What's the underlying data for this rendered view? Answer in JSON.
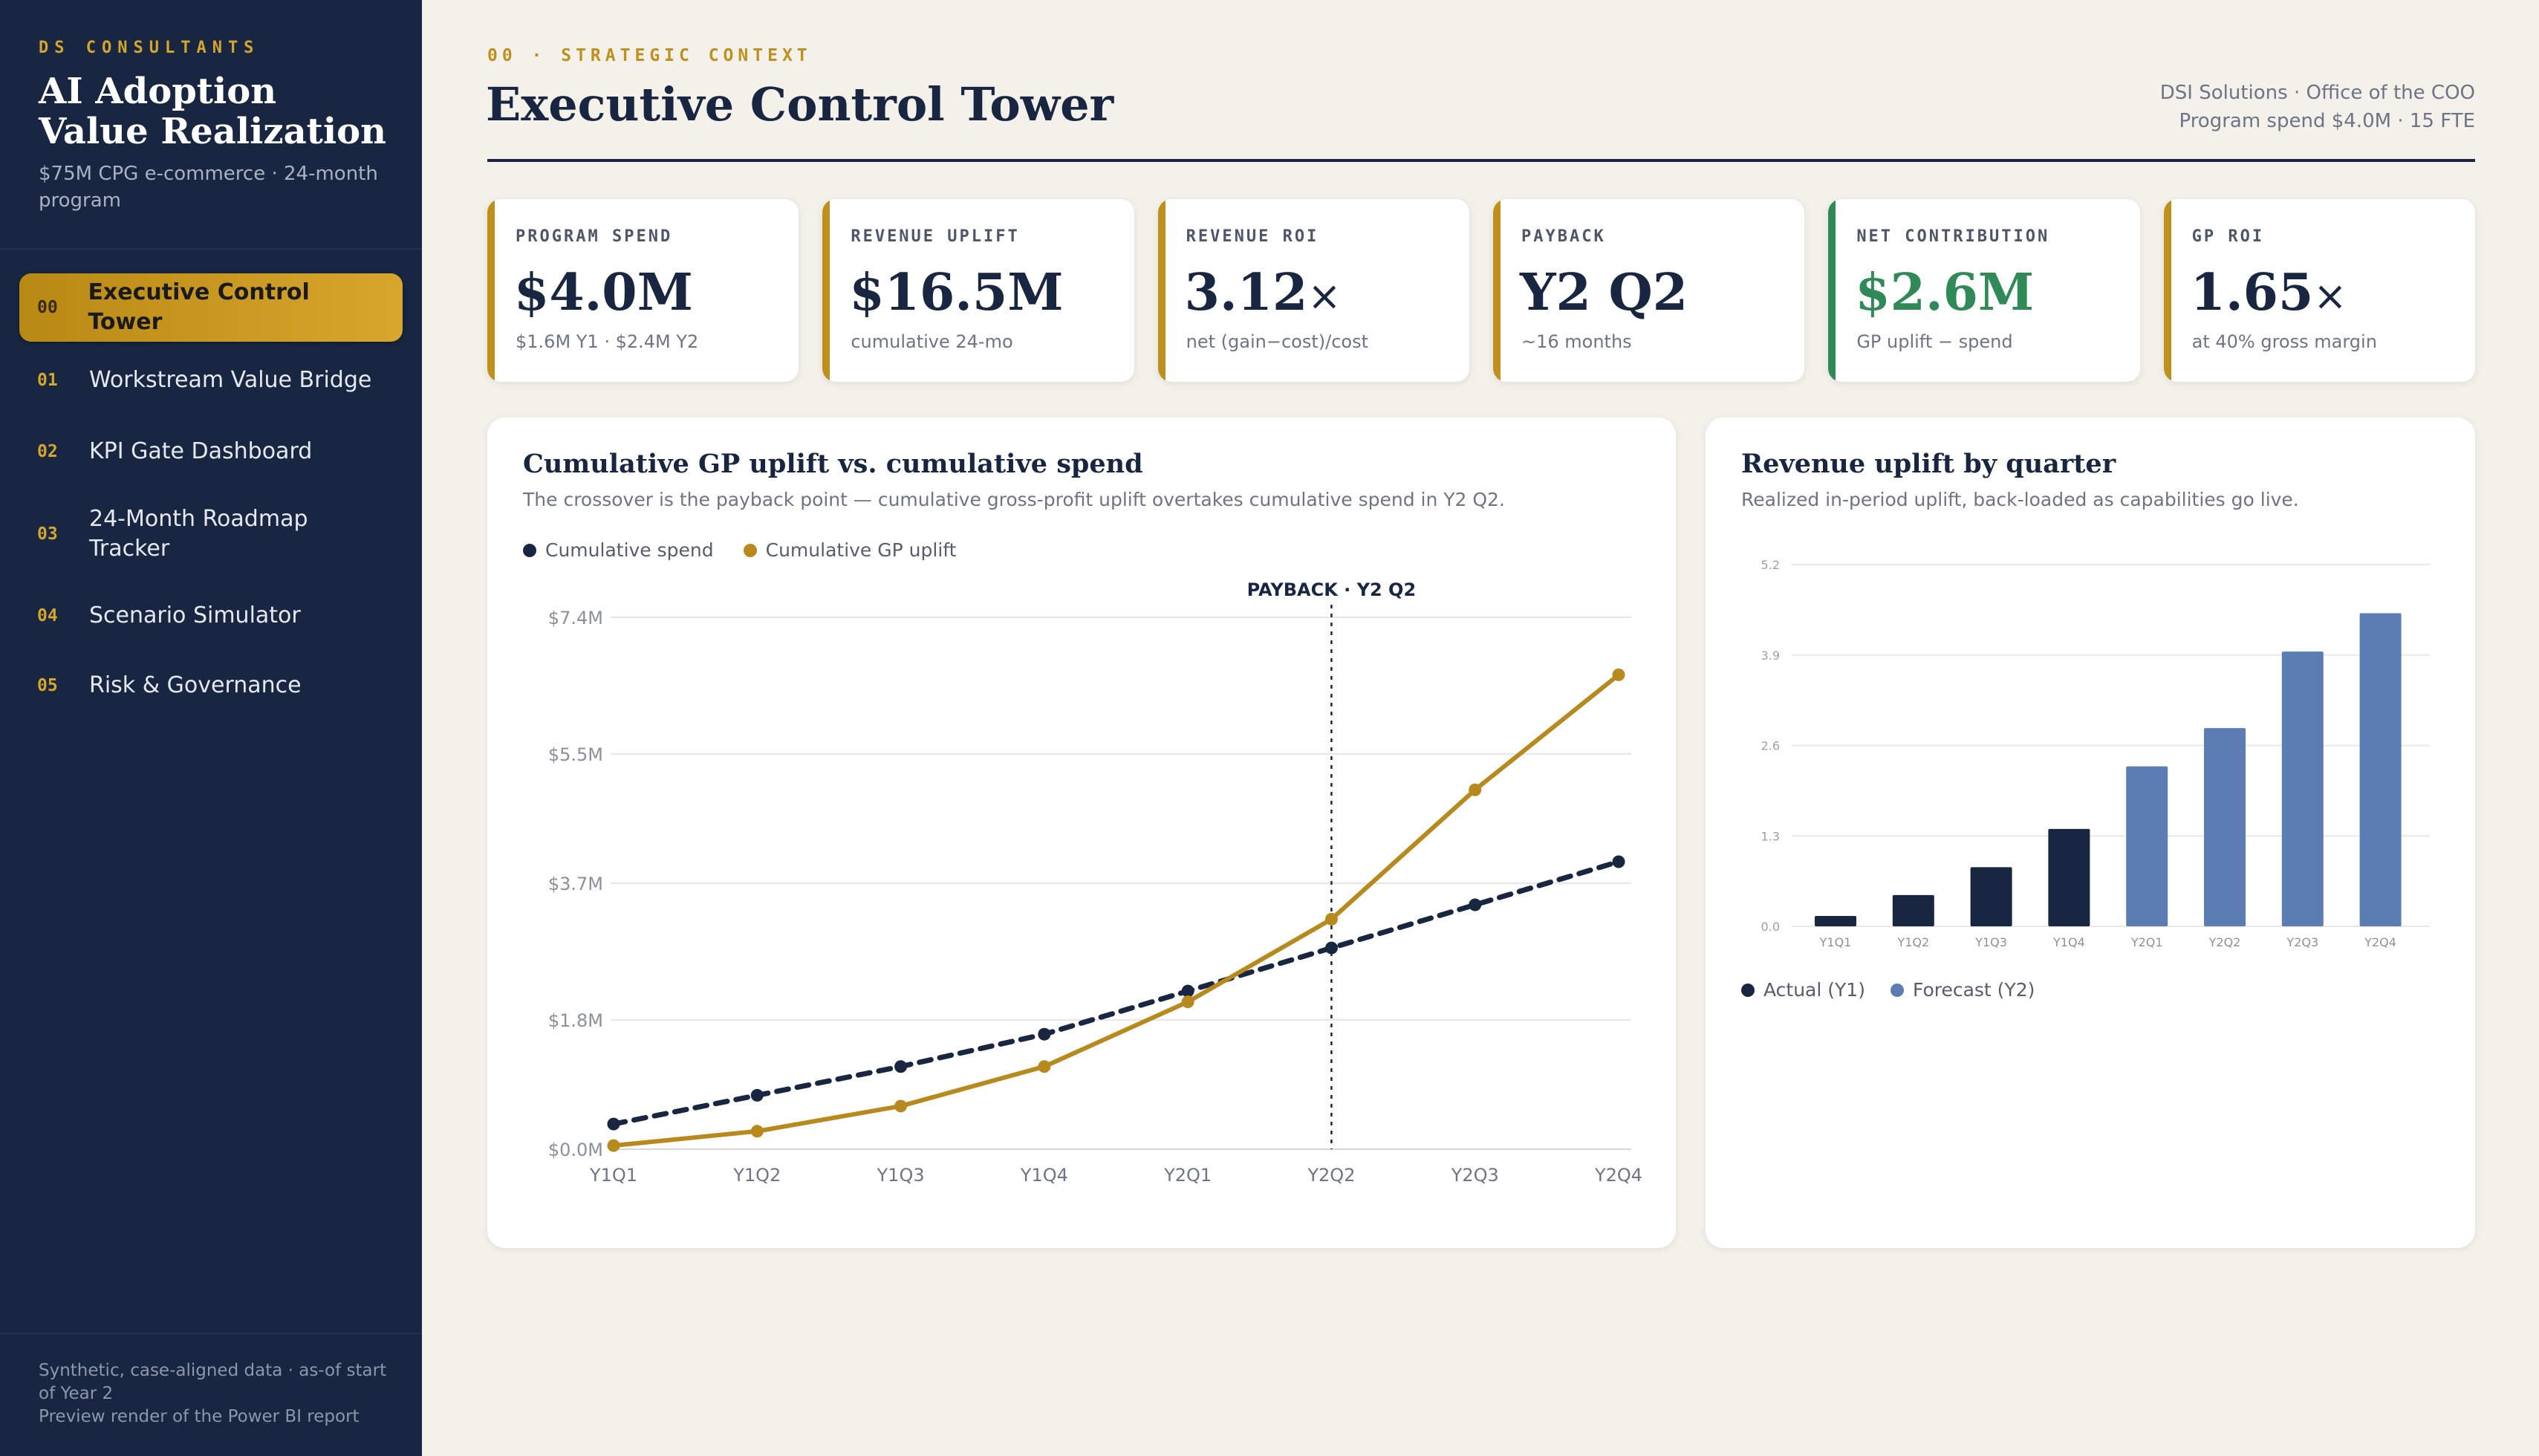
{
  "sidebar": {
    "brand": "DS CONSULTANTS",
    "app_title": "AI Adoption Value Realization",
    "app_subtitle": "$75M CPG e-commerce · 24-month program",
    "nav": [
      {
        "num": "00",
        "label": "Executive Control Tower",
        "active": true
      },
      {
        "num": "01",
        "label": "Workstream Value Bridge",
        "active": false
      },
      {
        "num": "02",
        "label": "KPI Gate Dashboard",
        "active": false
      },
      {
        "num": "03",
        "label": "24-Month Roadmap Tracker",
        "active": false
      },
      {
        "num": "04",
        "label": "Scenario Simulator",
        "active": false
      },
      {
        "num": "05",
        "label": "Risk & Governance",
        "active": false
      }
    ],
    "footer_line1": "Synthetic, case-aligned data · as-of start of Year 2",
    "footer_line2": "Preview render of the Power BI report"
  },
  "header": {
    "eyebrow": "00 · STRATEGIC CONTEXT",
    "title": "Executive Control Tower",
    "client_line1": "DSI Solutions · Office of the COO",
    "client_line2": "Program spend $4.0M · 15 FTE"
  },
  "kpis": [
    {
      "label": "PROGRAM SPEND",
      "value": "$4.0M",
      "unit": "",
      "sub": "$1.6M Y1 · $2.4M Y2",
      "accent": "#c0901c"
    },
    {
      "label": "REVENUE UPLIFT",
      "value": "$16.5M",
      "unit": "",
      "sub": "cumulative 24-mo",
      "accent": "#c0901c"
    },
    {
      "label": "REVENUE ROI",
      "value": "3.12",
      "unit": "×",
      "sub": "net (gain−cost)/cost",
      "accent": "#c0901c"
    },
    {
      "label": "PAYBACK",
      "value": "Y2 Q2",
      "unit": "",
      "sub": "~16 months",
      "accent": "#c0901c"
    },
    {
      "label": "NET CONTRIBUTION",
      "value": "$2.6M",
      "unit": "",
      "sub": "GP uplift − spend",
      "accent": "#2f8a58"
    },
    {
      "label": "GP ROI",
      "value": "1.65",
      "unit": "×",
      "sub": "at 40% gross margin",
      "accent": "#c0901c"
    }
  ],
  "line_panel": {
    "title": "Cumulative GP uplift vs. cumulative spend",
    "subtitle": "The crossover is the payback point — cumulative gross-profit uplift overtakes cumulative spend in Y2 Q2."
  },
  "bar_panel": {
    "title": "Revenue uplift by quarter",
    "subtitle": "Realized in-period uplift, back-loaded as capabilities go live."
  },
  "chart_data": [
    {
      "type": "line",
      "categories": [
        "Y1Q1",
        "Y1Q2",
        "Y1Q3",
        "Y1Q4",
        "Y2Q1",
        "Y2Q2",
        "Y2Q3",
        "Y2Q4"
      ],
      "series": [
        {
          "name": "Cumulative spend",
          "values": [
            0.35,
            0.75,
            1.15,
            1.6,
            2.2,
            2.8,
            3.4,
            4.0
          ],
          "color": "#182641",
          "style": "dashed"
        },
        {
          "name": "Cumulative GP uplift",
          "values": [
            0.05,
            0.25,
            0.6,
            1.15,
            2.05,
            3.2,
            5.0,
            6.6
          ],
          "color": "#b8891c",
          "style": "solid"
        }
      ],
      "yticks": [
        0.0,
        1.8,
        3.7,
        5.5,
        7.4
      ],
      "ytick_labels": [
        "$0.0M",
        "$1.8M",
        "$3.7M",
        "$5.5M",
        "$7.4M"
      ],
      "ylim": [
        0,
        7.4
      ],
      "annotation": {
        "x": "Y2Q2",
        "label": "PAYBACK · Y2 Q2"
      },
      "legend": "top-left",
      "grid": true
    },
    {
      "type": "bar",
      "categories": [
        "Y1Q1",
        "Y1Q2",
        "Y1Q3",
        "Y1Q4",
        "Y2Q1",
        "Y2Q2",
        "Y2Q3",
        "Y2Q4"
      ],
      "values": [
        0.15,
        0.45,
        0.85,
        1.4,
        2.3,
        2.85,
        3.95,
        4.5
      ],
      "kinds": [
        "actual",
        "actual",
        "actual",
        "actual",
        "forecast",
        "forecast",
        "forecast",
        "forecast"
      ],
      "series": [
        {
          "name": "Actual (Y1)",
          "color": "#182641"
        },
        {
          "name": "Forecast (Y2)",
          "color": "#5b7db3"
        }
      ],
      "yticks": [
        0.0,
        1.3,
        2.6,
        3.9,
        5.2
      ],
      "ytick_labels": [
        "0.0",
        "1.3",
        "2.6",
        "3.9",
        "5.2"
      ],
      "ylim": [
        0,
        5.2
      ],
      "legend": "bottom-left",
      "grid": true
    }
  ]
}
